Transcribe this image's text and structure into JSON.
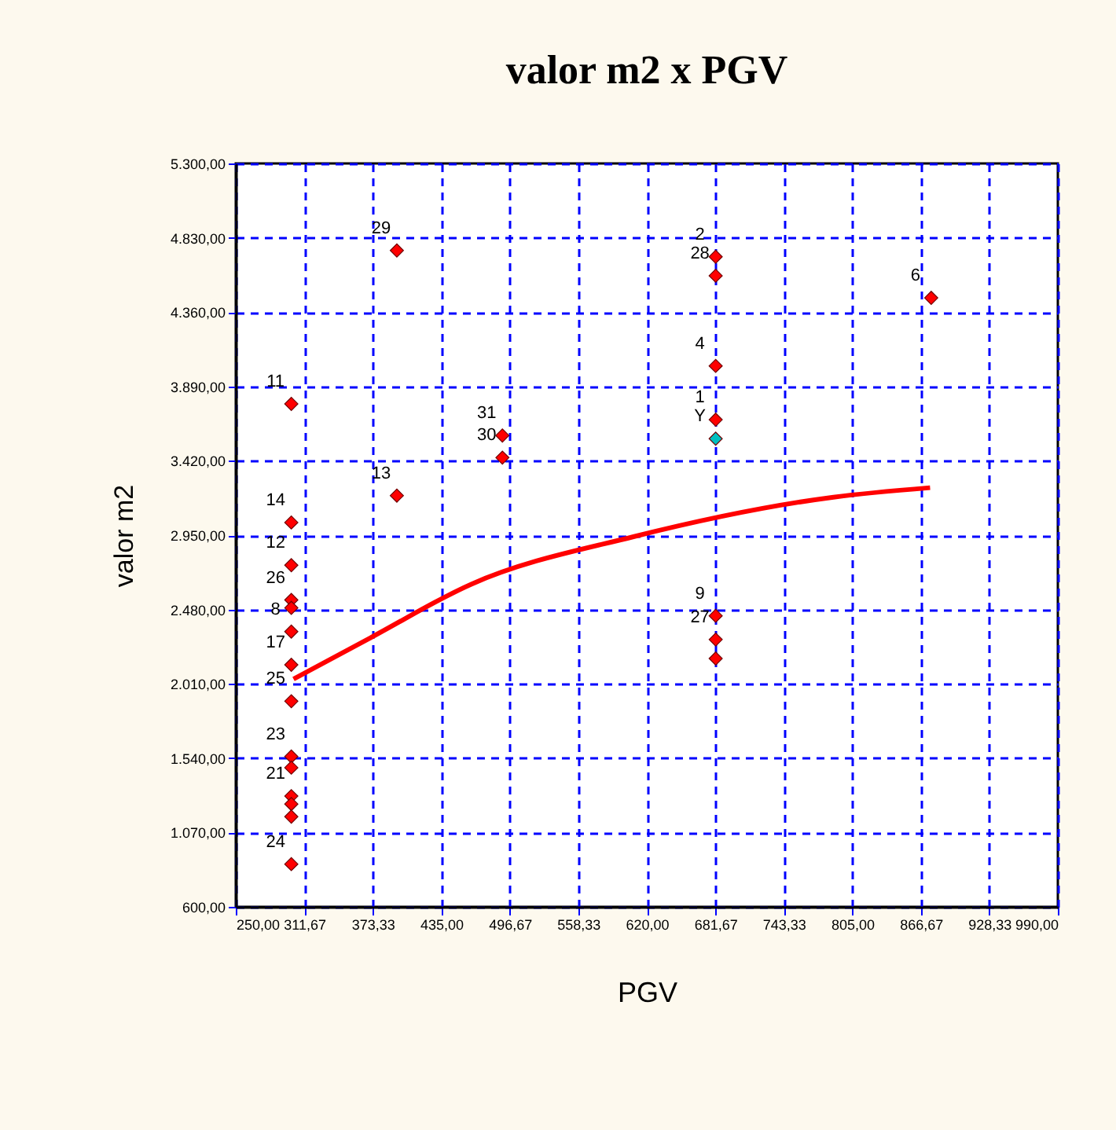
{
  "chart_data": {
    "type": "scatter",
    "title": "valor m2 x PGV",
    "xlabel": "PGV",
    "ylabel": "valor m2",
    "xlim": [
      250,
      990
    ],
    "ylim": [
      600,
      5300
    ],
    "xticks": [
      {
        "value": 250,
        "label": "250,00"
      },
      {
        "value": 311.67,
        "label": "311,67"
      },
      {
        "value": 373.33,
        "label": "373,33"
      },
      {
        "value": 435,
        "label": "435,00"
      },
      {
        "value": 496.67,
        "label": "496,67"
      },
      {
        "value": 558.33,
        "label": "558,33"
      },
      {
        "value": 620,
        "label": "620,00"
      },
      {
        "value": 681.67,
        "label": "681,67"
      },
      {
        "value": 743.33,
        "label": "743,33"
      },
      {
        "value": 805,
        "label": "805,00"
      },
      {
        "value": 866.67,
        "label": "866,67"
      },
      {
        "value": 928.33,
        "label": "928,33"
      },
      {
        "value": 990,
        "label": "990,00"
      }
    ],
    "yticks": [
      {
        "value": 600,
        "label": "600,00"
      },
      {
        "value": 1070,
        "label": "1.070,00"
      },
      {
        "value": 1540,
        "label": "1.540,00"
      },
      {
        "value": 2010,
        "label": "2.010,00"
      },
      {
        "value": 2480,
        "label": "2.480,00"
      },
      {
        "value": 2950,
        "label": "2.950,00"
      },
      {
        "value": 3420,
        "label": "3.420,00"
      },
      {
        "value": 3890,
        "label": "3.890,00"
      },
      {
        "value": 4360,
        "label": "4.360,00"
      },
      {
        "value": 4830,
        "label": "4.830,00"
      },
      {
        "value": 5300,
        "label": "5.300,00"
      }
    ],
    "grid": true,
    "marker": "diamond",
    "series": [
      {
        "color": "#ff0000",
        "x": [
          300,
          300,
          300,
          300,
          300,
          300,
          300,
          300,
          300,
          300,
          300,
          300,
          300,
          300,
          395,
          395,
          490,
          490,
          682,
          682,
          682,
          682,
          682,
          682,
          682,
          876
        ],
        "values": [
          3780,
          3030,
          2760,
          2540,
          2490,
          2340,
          2130,
          1900,
          1550,
          1480,
          1300,
          1250,
          1170,
          870,
          4750,
          3200,
          3580,
          3440,
          4710,
          4590,
          4020,
          3680,
          2440,
          2290,
          2170,
          4450
        ]
      },
      {
        "color": "#00c0c0",
        "x": [
          682
        ],
        "values": [
          3560
        ]
      },
      {
        "type": "line",
        "marker": "none",
        "color": "#ff0000",
        "x": [
          302,
          371,
          462,
          608,
          788,
          875
        ],
        "values": [
          2040,
          2300,
          2640,
          2940,
          3190,
          3250
        ]
      }
    ],
    "annotations": [
      {
        "text": "11",
        "x": 300,
        "y": 3780
      },
      {
        "text": "14",
        "x": 300,
        "y": 3030
      },
      {
        "text": "12",
        "x": 300,
        "y": 2760
      },
      {
        "text": "26",
        "x": 300,
        "y": 2540
      },
      {
        "text": "8",
        "x": 300,
        "y": 2340
      },
      {
        "text": "17",
        "x": 300,
        "y": 2130
      },
      {
        "text": "25",
        "x": 300,
        "y": 1900
      },
      {
        "text": "23",
        "x": 300,
        "y": 1550
      },
      {
        "text": "21",
        "x": 300,
        "y": 1300
      },
      {
        "text": "24",
        "x": 300,
        "y": 870
      },
      {
        "text": "29",
        "x": 395,
        "y": 4750
      },
      {
        "text": "13",
        "x": 395,
        "y": 3200
      },
      {
        "text": "31",
        "x": 490,
        "y": 3580
      },
      {
        "text": "30",
        "x": 490,
        "y": 3440
      },
      {
        "text": "2",
        "x": 682,
        "y": 4710
      },
      {
        "text": "28",
        "x": 682,
        "y": 4590
      },
      {
        "text": "4",
        "x": 682,
        "y": 4020
      },
      {
        "text": "1",
        "x": 682,
        "y": 3680
      },
      {
        "text": "Y",
        "x": 682,
        "y": 3560
      },
      {
        "text": "9",
        "x": 682,
        "y": 2440
      },
      {
        "text": "27",
        "x": 682,
        "y": 2290
      },
      {
        "text": "6",
        "x": 876,
        "y": 4450
      }
    ]
  }
}
